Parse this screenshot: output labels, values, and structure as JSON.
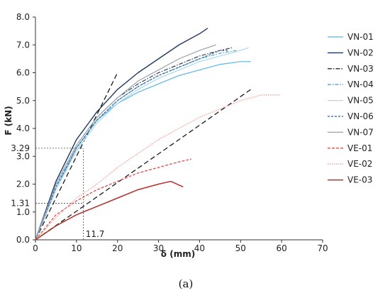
{
  "caption": "(a)",
  "chart_data": {
    "type": "line",
    "xlabel": "δ (mm)",
    "ylabel": "F (kN)",
    "xlim": [
      0,
      70
    ],
    "ylim": [
      0,
      8
    ],
    "x_ticks": [
      "0",
      "10",
      "20",
      "30",
      "40",
      "50",
      "60",
      "70"
    ],
    "y_ticks": [
      "0.0",
      "1.0",
      "2.0",
      "3.0",
      "4.0",
      "5.0",
      "6.0",
      "7.0",
      "8.0"
    ],
    "legend_position": "right",
    "reference_lines": [
      {
        "style": "dashed",
        "color": "#1a1a1a",
        "points": [
          [
            0,
            0
          ],
          [
            20,
            6.0
          ]
        ]
      },
      {
        "style": "dashed",
        "color": "#1a1a1a",
        "points": [
          [
            0,
            0
          ],
          [
            52.5,
            5.4
          ]
        ]
      }
    ],
    "annotations": [
      {
        "text": "3.29",
        "kind": "y-marker",
        "value": 3.29,
        "x_end": 11.7
      },
      {
        "text": "1.31",
        "kind": "y-marker",
        "value": 1.31,
        "x_end": 11.7
      },
      {
        "text": "11.7",
        "kind": "x-marker",
        "value": 11.7,
        "y_end": 3.29
      }
    ],
    "series": [
      {
        "name": "VN-01",
        "color": "#5ab4e6",
        "dash": "",
        "width": 1.2,
        "x": [
          0,
          5,
          10,
          15,
          20,
          25,
          30,
          35,
          40,
          45,
          50,
          52.5
        ],
        "y": [
          0,
          1.8,
          3.3,
          4.3,
          4.9,
          5.3,
          5.6,
          5.9,
          6.1,
          6.3,
          6.4,
          6.4
        ]
      },
      {
        "name": "VN-02",
        "color": "#1f3a5f",
        "dash": "",
        "width": 1.4,
        "x": [
          0,
          5,
          10,
          15,
          20,
          25,
          30,
          35,
          40,
          42
        ],
        "y": [
          0,
          2.1,
          3.6,
          4.6,
          5.4,
          6.0,
          6.5,
          7.0,
          7.4,
          7.6
        ]
      },
      {
        "name": "VN-03",
        "color": "#1f2f44",
        "dash": "6 2 1.5 2",
        "width": 1.1,
        "x": [
          0,
          5,
          10,
          15,
          20,
          25,
          30,
          35,
          40,
          45,
          48
        ],
        "y": [
          0,
          2.0,
          3.4,
          4.4,
          5.1,
          5.6,
          6.0,
          6.3,
          6.6,
          6.8,
          6.9
        ]
      },
      {
        "name": "VN-04",
        "color": "#3fa3c8",
        "dash": "5 2 1.5 2",
        "width": 1.1,
        "x": [
          0,
          5,
          10,
          15,
          20,
          25,
          30,
          35,
          40,
          45,
          49
        ],
        "y": [
          0,
          1.9,
          3.3,
          4.3,
          5.0,
          5.5,
          5.9,
          6.2,
          6.5,
          6.7,
          6.8
        ]
      },
      {
        "name": "VN-05",
        "color": "#a9d8f2",
        "dash": "",
        "width": 1.2,
        "x": [
          0,
          5,
          10,
          15,
          20,
          25,
          30,
          35,
          40,
          45,
          50,
          52
        ],
        "y": [
          0,
          1.8,
          3.2,
          4.2,
          4.9,
          5.4,
          5.8,
          6.1,
          6.4,
          6.6,
          6.8,
          6.9
        ]
      },
      {
        "name": "VN-06",
        "color": "#2e5fa0",
        "dash": "3 2",
        "width": 1.2,
        "x": [
          0,
          5,
          10,
          15,
          20,
          25,
          30,
          35,
          40,
          45,
          47
        ],
        "y": [
          0,
          1.9,
          3.3,
          4.3,
          5.0,
          5.5,
          5.9,
          6.2,
          6.5,
          6.8,
          6.8
        ]
      },
      {
        "name": "VN-07",
        "color": "#9aa3ad",
        "dash": "",
        "width": 1.2,
        "x": [
          0,
          5,
          10,
          15,
          20,
          25,
          30,
          35,
          40,
          44
        ],
        "y": [
          0,
          2.0,
          3.4,
          4.4,
          5.1,
          5.7,
          6.1,
          6.5,
          6.8,
          7.0
        ]
      },
      {
        "name": "VE-01",
        "color": "#d9534f",
        "dash": "4 2",
        "width": 1.3,
        "x": [
          0,
          5,
          10,
          15,
          20,
          25,
          30,
          35,
          38
        ],
        "y": [
          0,
          0.9,
          1.4,
          1.8,
          2.1,
          2.4,
          2.6,
          2.8,
          2.9
        ]
      },
      {
        "name": "VE-02",
        "color": "#f09a8a",
        "dash": "1.5 1.5",
        "width": 1.2,
        "x": [
          0,
          5,
          10,
          15,
          20,
          25,
          30,
          35,
          40,
          45,
          50,
          55,
          59.5
        ],
        "y": [
          0,
          0.8,
          1.5,
          2.0,
          2.6,
          3.1,
          3.6,
          4.0,
          4.4,
          4.7,
          5.0,
          5.2,
          5.2
        ]
      },
      {
        "name": "VE-03",
        "color": "#b2302a",
        "dash": "",
        "width": 1.5,
        "x": [
          0,
          5,
          10,
          15,
          20,
          25,
          30,
          33,
          36
        ],
        "y": [
          0,
          0.5,
          0.9,
          1.2,
          1.5,
          1.8,
          2.0,
          2.1,
          1.9
        ]
      }
    ]
  }
}
